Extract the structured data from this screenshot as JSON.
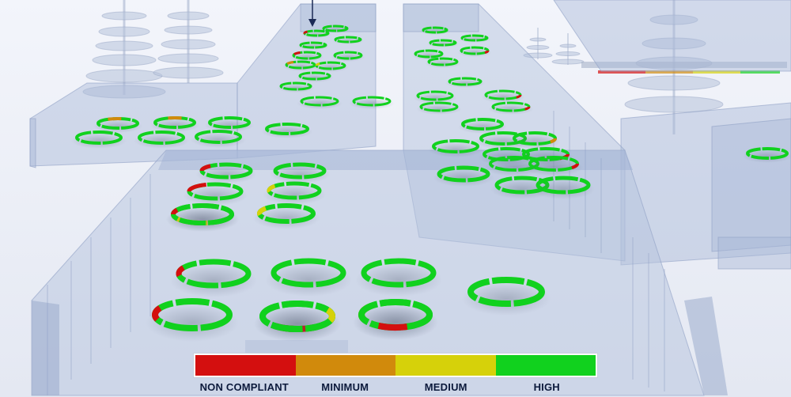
{
  "colors": {
    "non_compliant": "#d40f0f",
    "minimum": "#d18a0c",
    "medium": "#d6d10a",
    "high": "#11d11e"
  },
  "legend": {
    "items": [
      {
        "label": "NON COMPLIANT",
        "color": "#d40f0f"
      },
      {
        "label": "MINIMUM",
        "color": "#d18a0c"
      },
      {
        "label": "MEDIUM",
        "color": "#d6d10a"
      },
      {
        "label": "HIGH",
        "color": "#11d11e"
      }
    ]
  },
  "marker": {
    "icon": "arrow-down-icon"
  }
}
